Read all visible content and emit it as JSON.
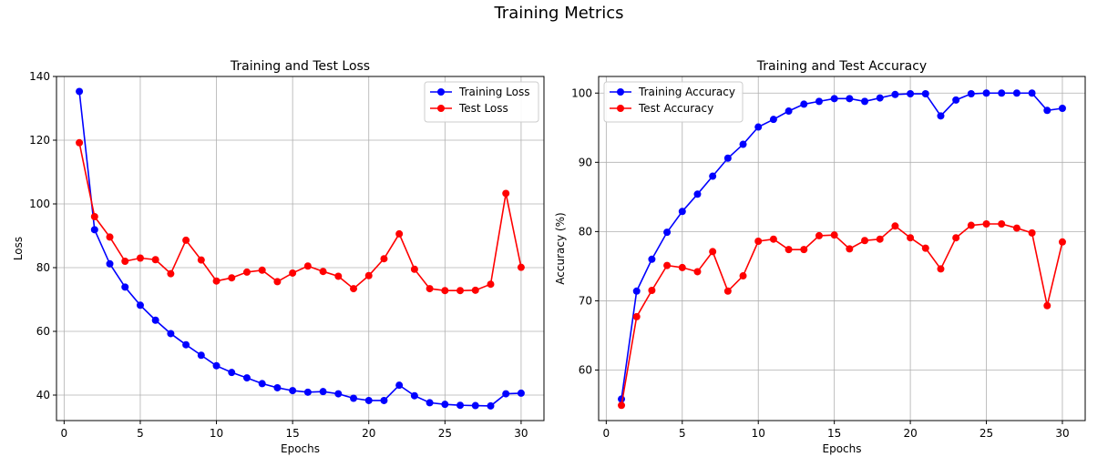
{
  "figure_title": "Training Metrics",
  "chart_data": [
    {
      "type": "line",
      "title": "Training and Test Loss",
      "xlabel": "Epochs",
      "ylabel": "Loss",
      "xlim": [
        -0.5,
        31.5
      ],
      "ylim": [
        32,
        140
      ],
      "xticks": [
        0,
        5,
        10,
        15,
        20,
        25,
        30
      ],
      "yticks": [
        40,
        60,
        80,
        100,
        120,
        140
      ],
      "grid": true,
      "legend_position": "top-right",
      "x": [
        1,
        2,
        3,
        4,
        5,
        6,
        7,
        8,
        9,
        10,
        11,
        12,
        13,
        14,
        15,
        16,
        17,
        18,
        19,
        20,
        21,
        22,
        23,
        24,
        25,
        26,
        27,
        28,
        29,
        30
      ],
      "series": [
        {
          "name": "Training Loss",
          "color": "#0000ff",
          "values": [
            135.3,
            91.9,
            81.2,
            73.9,
            68.2,
            63.5,
            59.3,
            55.8,
            52.5,
            49.2,
            47.1,
            45.4,
            43.6,
            42.3,
            41.4,
            40.9,
            41.1,
            40.4,
            39.0,
            38.3,
            38.3,
            43.1,
            39.8,
            37.6,
            37.1,
            36.8,
            36.7,
            36.6,
            40.4,
            40.6
          ]
        },
        {
          "name": "Test Loss",
          "color": "#ff0000",
          "values": [
            119.2,
            96.0,
            89.6,
            82.0,
            83.0,
            82.5,
            78.1,
            88.6,
            82.4,
            75.8,
            76.8,
            78.6,
            79.2,
            75.6,
            78.3,
            80.5,
            78.8,
            77.3,
            73.4,
            77.5,
            82.8,
            90.6,
            79.5,
            73.4,
            72.8,
            72.8,
            72.9,
            74.8,
            103.3,
            80.1
          ]
        }
      ]
    },
    {
      "type": "line",
      "title": "Training and Test Accuracy",
      "xlabel": "Epochs",
      "ylabel": "Accuracy (%)",
      "xlim": [
        -0.5,
        31.5
      ],
      "ylim": [
        52.7,
        102.4
      ],
      "xticks": [
        0,
        5,
        10,
        15,
        20,
        25,
        30
      ],
      "yticks": [
        60,
        70,
        80,
        90,
        100
      ],
      "grid": true,
      "legend_position": "top-left",
      "x": [
        1,
        2,
        3,
        4,
        5,
        6,
        7,
        8,
        9,
        10,
        11,
        12,
        13,
        14,
        15,
        16,
        17,
        18,
        19,
        20,
        21,
        22,
        23,
        24,
        25,
        26,
        27,
        28,
        29,
        30
      ],
      "series": [
        {
          "name": "Training Accuracy",
          "color": "#0000ff",
          "values": [
            55.8,
            71.4,
            76.0,
            79.9,
            82.9,
            85.4,
            88.0,
            90.6,
            92.6,
            95.1,
            96.2,
            97.4,
            98.4,
            98.8,
            99.2,
            99.2,
            98.8,
            99.3,
            99.8,
            99.9,
            99.9,
            96.7,
            99.0,
            99.9,
            100.0,
            100.0,
            100.0,
            100.0,
            97.5,
            97.8
          ]
        },
        {
          "name": "Test Accuracy",
          "color": "#ff0000",
          "values": [
            54.9,
            67.7,
            71.5,
            75.1,
            74.8,
            74.2,
            77.1,
            71.4,
            73.6,
            78.6,
            78.9,
            77.4,
            77.4,
            79.4,
            79.5,
            77.5,
            78.7,
            78.9,
            80.8,
            79.1,
            77.6,
            74.6,
            79.1,
            80.9,
            81.1,
            81.1,
            80.5,
            79.8,
            69.3,
            78.5
          ]
        }
      ]
    }
  ]
}
